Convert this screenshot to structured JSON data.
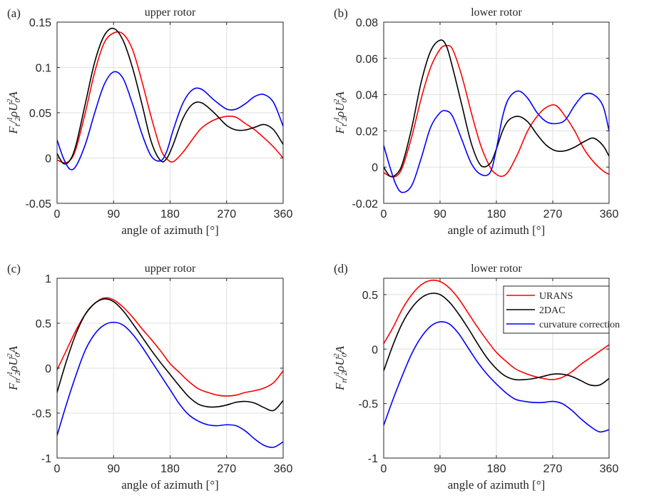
{
  "legend": {
    "entries": [
      {
        "name": "URANS",
        "color": "#ff0000"
      },
      {
        "name": "2DAC",
        "color": "#000000"
      },
      {
        "name": "curvature correction",
        "color": "#0000ff"
      }
    ]
  },
  "chart_data": [
    {
      "id": "a",
      "type": "line",
      "panel_label": "(a)",
      "title": "upper rotor",
      "xlabel": "angle of azimuth [°]",
      "ylabel": "F_t / ½ρU0²A",
      "xlim": [
        0,
        360
      ],
      "ylim": [
        -0.05,
        0.15
      ],
      "xticks": [
        0,
        90,
        180,
        270,
        360
      ],
      "xtick_labels": [
        "0",
        "90",
        "180",
        "270",
        "360"
      ],
      "yticks": [
        -0.05,
        0,
        0.05,
        0.1,
        0.15
      ],
      "ytick_labels": [
        "-0.05",
        "0",
        "0.05",
        "0.1",
        "0.15"
      ],
      "grid": true,
      "series": [
        {
          "name": "URANS",
          "color": "#ff0000",
          "x": [
            0,
            10,
            20,
            30,
            45,
            60,
            75,
            90,
            105,
            120,
            135,
            150,
            165,
            175,
            185,
            200,
            215,
            230,
            250,
            270,
            285,
            300,
            315,
            330,
            345,
            360
          ],
          "y": [
            -0.002,
            -0.005,
            -0.003,
            0.01,
            0.05,
            0.095,
            0.127,
            0.138,
            0.137,
            0.12,
            0.085,
            0.045,
            0.01,
            -0.001,
            -0.004,
            0.006,
            0.02,
            0.033,
            0.042,
            0.046,
            0.045,
            0.038,
            0.031,
            0.022,
            0.012,
            0.0
          ]
        },
        {
          "name": "2DAC",
          "color": "#000000",
          "x": [
            0,
            10,
            20,
            30,
            45,
            60,
            75,
            90,
            105,
            120,
            135,
            150,
            165,
            175,
            185,
            200,
            215,
            230,
            250,
            270,
            285,
            300,
            315,
            330,
            345,
            360
          ],
          "y": [
            0.005,
            -0.006,
            -0.003,
            0.014,
            0.06,
            0.106,
            0.135,
            0.143,
            0.13,
            0.1,
            0.06,
            0.018,
            -0.003,
            0.0,
            0.015,
            0.043,
            0.059,
            0.061,
            0.05,
            0.036,
            0.031,
            0.031,
            0.034,
            0.037,
            0.031,
            0.015
          ]
        },
        {
          "name": "curvature correction",
          "color": "#0000ff",
          "x": [
            0,
            10,
            20,
            30,
            45,
            60,
            75,
            90,
            105,
            120,
            135,
            150,
            165,
            175,
            185,
            200,
            215,
            230,
            250,
            270,
            285,
            300,
            315,
            330,
            345,
            360
          ],
          "y": [
            0.02,
            0.0,
            -0.012,
            -0.009,
            0.015,
            0.05,
            0.081,
            0.095,
            0.088,
            0.06,
            0.027,
            0.002,
            -0.003,
            0.008,
            0.031,
            0.06,
            0.075,
            0.076,
            0.064,
            0.054,
            0.054,
            0.06,
            0.068,
            0.07,
            0.061,
            0.035
          ]
        }
      ]
    },
    {
      "id": "b",
      "type": "line",
      "panel_label": "(b)",
      "title": "lower rotor",
      "xlabel": "angle of azimuth [°]",
      "ylabel": "F_t / ½ρU0²A",
      "xlim": [
        0,
        360
      ],
      "ylim": [
        -0.02,
        0.08
      ],
      "xticks": [
        0,
        90,
        180,
        270,
        360
      ],
      "xtick_labels": [
        "0",
        "90",
        "180",
        "270",
        "360"
      ],
      "yticks": [
        -0.02,
        0,
        0.02,
        0.04,
        0.06,
        0.08
      ],
      "ytick_labels": [
        "-0.02",
        "0",
        "0.02",
        "0.04",
        "0.06",
        "0.08"
      ],
      "grid": true,
      "series": [
        {
          "name": "URANS",
          "color": "#ff0000",
          "x": [
            0,
            10,
            20,
            30,
            45,
            60,
            75,
            90,
            100,
            110,
            125,
            140,
            155,
            170,
            180,
            190,
            200,
            215,
            230,
            245,
            260,
            275,
            290,
            305,
            320,
            335,
            350,
            360
          ],
          "y": [
            -0.003,
            -0.005,
            -0.005,
            0.0,
            0.017,
            0.038,
            0.055,
            0.065,
            0.067,
            0.065,
            0.05,
            0.03,
            0.012,
            0.0,
            -0.004,
            -0.005,
            -0.002,
            0.008,
            0.02,
            0.028,
            0.033,
            0.034,
            0.028,
            0.02,
            0.01,
            0.003,
            -0.002,
            -0.004
          ]
        },
        {
          "name": "2DAC",
          "color": "#000000",
          "x": [
            0,
            10,
            20,
            30,
            45,
            60,
            75,
            90,
            100,
            110,
            125,
            140,
            155,
            170,
            180,
            190,
            200,
            215,
            230,
            245,
            260,
            275,
            290,
            305,
            320,
            335,
            350,
            360
          ],
          "y": [
            0.0,
            -0.005,
            -0.004,
            0.002,
            0.022,
            0.047,
            0.064,
            0.07,
            0.067,
            0.055,
            0.034,
            0.013,
            0.001,
            0.002,
            0.01,
            0.02,
            0.026,
            0.028,
            0.025,
            0.018,
            0.012,
            0.009,
            0.009,
            0.011,
            0.014,
            0.016,
            0.012,
            0.006
          ]
        },
        {
          "name": "curvature correction",
          "color": "#0000ff",
          "x": [
            0,
            10,
            20,
            30,
            45,
            60,
            75,
            90,
            100,
            110,
            125,
            140,
            155,
            170,
            180,
            190,
            200,
            215,
            230,
            245,
            260,
            275,
            290,
            305,
            320,
            335,
            350,
            360
          ],
          "y": [
            0.012,
            0.0,
            -0.01,
            -0.014,
            -0.01,
            0.005,
            0.022,
            0.03,
            0.031,
            0.028,
            0.015,
            0.002,
            -0.004,
            -0.003,
            0.01,
            0.028,
            0.038,
            0.042,
            0.038,
            0.03,
            0.025,
            0.024,
            0.026,
            0.034,
            0.04,
            0.04,
            0.034,
            0.02
          ]
        }
      ]
    },
    {
      "id": "c",
      "type": "line",
      "panel_label": "(c)",
      "title": "upper rotor",
      "xlabel": "angle of azimuth [°]",
      "ylabel": "F_n / ½ρU0²A",
      "xlim": [
        0,
        360
      ],
      "ylim": [
        -1,
        1
      ],
      "xticks": [
        0,
        90,
        180,
        270,
        360
      ],
      "xtick_labels": [
        "0",
        "90",
        "180",
        "270",
        "360"
      ],
      "yticks": [
        -1,
        -0.5,
        0,
        0.5,
        1
      ],
      "ytick_labels": [
        "-1",
        "-0.5",
        "0",
        "0.5",
        "1"
      ],
      "grid": true,
      "series": [
        {
          "name": "URANS",
          "color": "#ff0000",
          "x": [
            0,
            15,
            30,
            45,
            60,
            75,
            90,
            105,
            120,
            135,
            150,
            165,
            180,
            195,
            210,
            225,
            240,
            255,
            270,
            285,
            300,
            315,
            330,
            345,
            360
          ],
          "y": [
            -0.02,
            0.2,
            0.42,
            0.6,
            0.72,
            0.78,
            0.76,
            0.68,
            0.57,
            0.44,
            0.32,
            0.19,
            0.05,
            -0.05,
            -0.15,
            -0.23,
            -0.27,
            -0.3,
            -0.31,
            -0.3,
            -0.27,
            -0.25,
            -0.22,
            -0.16,
            -0.03
          ]
        },
        {
          "name": "2DAC",
          "color": "#000000",
          "x": [
            0,
            15,
            30,
            45,
            60,
            75,
            90,
            105,
            120,
            135,
            150,
            165,
            180,
            195,
            210,
            225,
            240,
            255,
            270,
            285,
            300,
            315,
            330,
            345,
            360
          ],
          "y": [
            -0.27,
            0.08,
            0.38,
            0.6,
            0.72,
            0.77,
            0.74,
            0.64,
            0.5,
            0.35,
            0.2,
            0.06,
            -0.07,
            -0.2,
            -0.32,
            -0.4,
            -0.43,
            -0.43,
            -0.41,
            -0.38,
            -0.37,
            -0.39,
            -0.44,
            -0.47,
            -0.36
          ]
        },
        {
          "name": "curvature correction",
          "color": "#0000ff",
          "x": [
            0,
            15,
            30,
            45,
            60,
            75,
            90,
            105,
            120,
            135,
            150,
            165,
            180,
            195,
            210,
            225,
            240,
            255,
            270,
            285,
            300,
            315,
            330,
            345,
            360
          ],
          "y": [
            -0.75,
            -0.4,
            -0.08,
            0.2,
            0.38,
            0.48,
            0.51,
            0.48,
            0.38,
            0.24,
            0.08,
            -0.08,
            -0.24,
            -0.4,
            -0.52,
            -0.59,
            -0.63,
            -0.64,
            -0.63,
            -0.64,
            -0.7,
            -0.79,
            -0.86,
            -0.88,
            -0.82
          ]
        }
      ]
    },
    {
      "id": "d",
      "type": "line",
      "panel_label": "(d)",
      "title": "lower rotor",
      "xlabel": "angle of azimuth [°]",
      "ylabel": "F_n / ½ρU0²A",
      "xlim": [
        0,
        360
      ],
      "ylim": [
        -1,
        0.65
      ],
      "xticks": [
        0,
        90,
        180,
        270,
        360
      ],
      "xtick_labels": [
        "0",
        "90",
        "180",
        "270",
        "360"
      ],
      "yticks": [
        -1,
        -0.5,
        0,
        0.5
      ],
      "ytick_labels": [
        "-1",
        "-0.5",
        "0",
        "0.5"
      ],
      "grid": true,
      "legend_position": "top-right",
      "series": [
        {
          "name": "URANS",
          "color": "#ff0000",
          "x": [
            0,
            15,
            30,
            45,
            60,
            75,
            90,
            105,
            120,
            135,
            150,
            165,
            180,
            195,
            210,
            225,
            240,
            255,
            270,
            285,
            300,
            315,
            330,
            345,
            360
          ],
          "y": [
            0.05,
            0.2,
            0.37,
            0.5,
            0.59,
            0.63,
            0.62,
            0.56,
            0.46,
            0.33,
            0.2,
            0.08,
            -0.03,
            -0.11,
            -0.18,
            -0.22,
            -0.25,
            -0.27,
            -0.28,
            -0.26,
            -0.21,
            -0.14,
            -0.08,
            -0.02,
            0.04
          ]
        },
        {
          "name": "2DAC",
          "color": "#000000",
          "x": [
            0,
            15,
            30,
            45,
            60,
            75,
            90,
            105,
            120,
            135,
            150,
            165,
            180,
            195,
            210,
            225,
            240,
            255,
            270,
            285,
            300,
            315,
            330,
            345,
            360
          ],
          "y": [
            -0.2,
            0.04,
            0.24,
            0.38,
            0.47,
            0.51,
            0.5,
            0.43,
            0.32,
            0.19,
            0.05,
            -0.08,
            -0.18,
            -0.25,
            -0.28,
            -0.28,
            -0.27,
            -0.25,
            -0.23,
            -0.23,
            -0.25,
            -0.29,
            -0.33,
            -0.33,
            -0.27
          ]
        },
        {
          "name": "curvature correction",
          "color": "#0000ff",
          "x": [
            0,
            15,
            30,
            45,
            60,
            75,
            90,
            105,
            120,
            135,
            150,
            165,
            180,
            195,
            210,
            225,
            240,
            255,
            270,
            285,
            300,
            315,
            330,
            345,
            360
          ],
          "y": [
            -0.7,
            -0.46,
            -0.24,
            -0.04,
            0.11,
            0.21,
            0.25,
            0.23,
            0.14,
            0.01,
            -0.12,
            -0.23,
            -0.32,
            -0.4,
            -0.46,
            -0.48,
            -0.49,
            -0.49,
            -0.48,
            -0.5,
            -0.56,
            -0.64,
            -0.71,
            -0.76,
            -0.74
          ]
        }
      ]
    }
  ]
}
